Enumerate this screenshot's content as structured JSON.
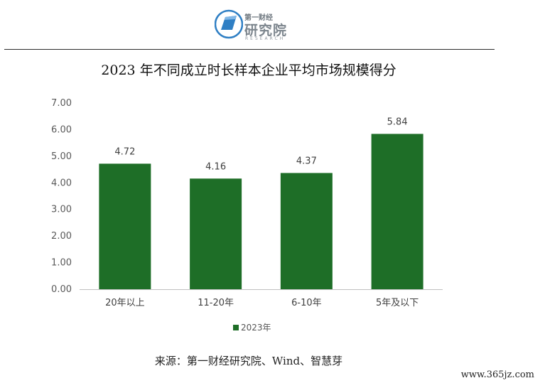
{
  "logo": {
    "top_text": "第一财经",
    "main_text": "研究院",
    "sub_text": "RESEARCH",
    "colors": {
      "blue": "#2f7fc4",
      "gray": "#7d868e"
    }
  },
  "chart_data": {
    "type": "bar",
    "title": "2023 年不同成立时长样本企业平均市场规模得分",
    "categories": [
      "20年以上",
      "11-20年",
      "6-10年",
      "5年及以下"
    ],
    "series": [
      {
        "name": "2023年",
        "values": [
          4.72,
          4.16,
          4.37,
          5.84
        ],
        "color": "#1e6e27"
      }
    ],
    "ylim": [
      0,
      7
    ],
    "yticks": [
      "0.00",
      "1.00",
      "2.00",
      "3.00",
      "4.00",
      "5.00",
      "6.00",
      "7.00"
    ],
    "value_labels": [
      "4.72",
      "4.16",
      "4.37",
      "5.84"
    ],
    "grid": false,
    "legend_position": "bottom",
    "xlabel": "",
    "ylabel": ""
  },
  "source": "来源：第一财经研究院、Wind、智慧芽",
  "watermark": "www.365jz.com"
}
